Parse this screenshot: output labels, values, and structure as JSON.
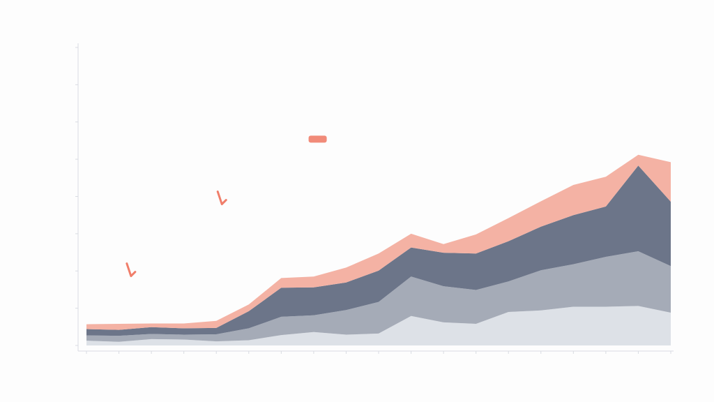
{
  "chart_data": {
    "type": "area",
    "stacked": true,
    "title": "",
    "xlabel": "",
    "ylabel": "",
    "x": [
      1,
      2,
      3,
      4,
      5,
      6,
      7,
      8,
      9,
      10,
      11,
      12,
      13,
      14,
      15,
      16,
      17,
      18,
      19
    ],
    "x_tick_labels": [
      "",
      "",
      "",
      "",
      "",
      "",
      "",
      "",
      "",
      "",
      "",
      "",
      "",
      "",
      "",
      "",
      "",
      "",
      ""
    ],
    "ylim": [
      0,
      800
    ],
    "y_ticks": [
      0,
      100,
      200,
      300,
      400,
      500,
      600,
      700,
      800
    ],
    "y_tick_labels": [
      "",
      "",
      "",
      "",
      "",
      "",
      "",
      "",
      ""
    ],
    "grid": false,
    "legend": "none",
    "series": [
      {
        "values": [
          13,
          10,
          17,
          16,
          11,
          14,
          28,
          36,
          29,
          32,
          79,
          62,
          58,
          90,
          94,
          104,
          104,
          106,
          88
        ],
        "color": "#dde1e7"
      },
      {
        "values": [
          14,
          16,
          14,
          13,
          19,
          32,
          49,
          45,
          66,
          85,
          106,
          97,
          91,
          82,
          108,
          114,
          134,
          147,
          125
        ],
        "color": "#a5abb7"
      },
      {
        "values": [
          17,
          16,
          18,
          17,
          17,
          46,
          78,
          75,
          74,
          84,
          78,
          90,
          98,
          108,
          117,
          132,
          135,
          230,
          173
        ],
        "color": "#6c7589"
      },
      {
        "values": [
          13,
          16,
          10,
          13,
          19,
          18,
          26,
          29,
          40,
          46,
          37,
          23,
          51,
          62,
          68,
          81,
          80,
          29,
          106
        ],
        "color": "#f4b2a4"
      }
    ],
    "annotations": [
      {
        "x": 2.2,
        "y": 205,
        "text": ""
      },
      {
        "x": 5.0,
        "y": 398,
        "text": ""
      },
      {
        "x": 7.8,
        "y": 567,
        "text": ""
      }
    ]
  },
  "colors": {
    "annotation": "#f07e6a",
    "axis": "#d9dce2"
  }
}
